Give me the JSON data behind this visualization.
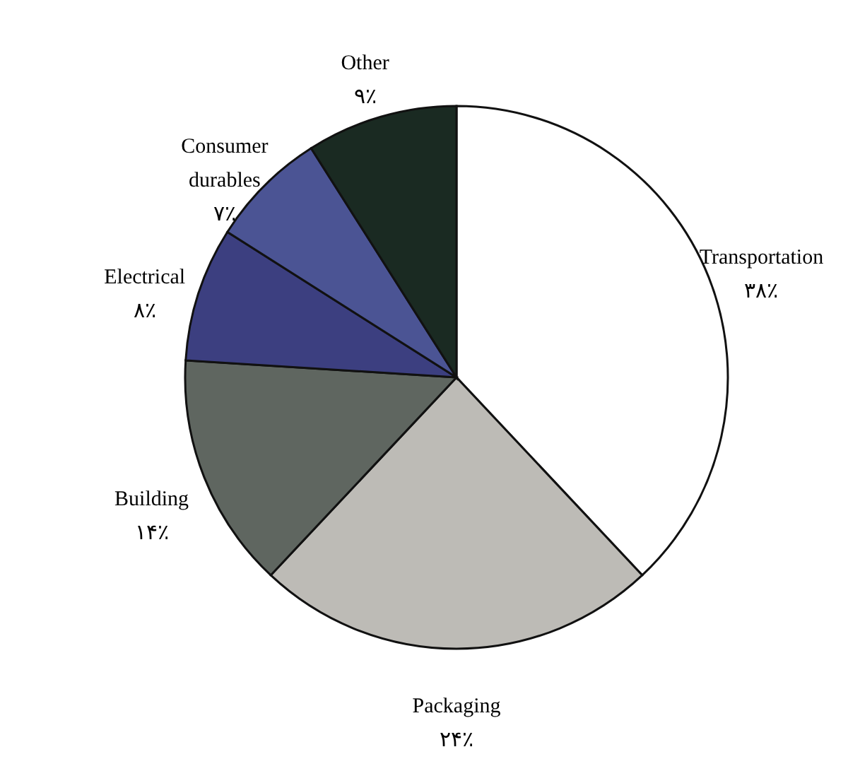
{
  "chart_data": {
    "type": "pie",
    "categories": [
      "Transportation",
      "Packaging",
      "Building",
      "Electrical",
      "Consumer durables",
      "Other"
    ],
    "values": [
      38,
      24,
      14,
      8,
      7,
      9
    ],
    "value_labels": [
      "۳۸٪",
      "۲۴٪",
      "۱۴٪",
      "۸٪",
      "۷٪",
      "۹٪"
    ],
    "colors": [
      "#ffffff",
      "#bdbbb6",
      "#5f6660",
      "#3c3f80",
      "#4b5494",
      "#1a2a22"
    ]
  }
}
